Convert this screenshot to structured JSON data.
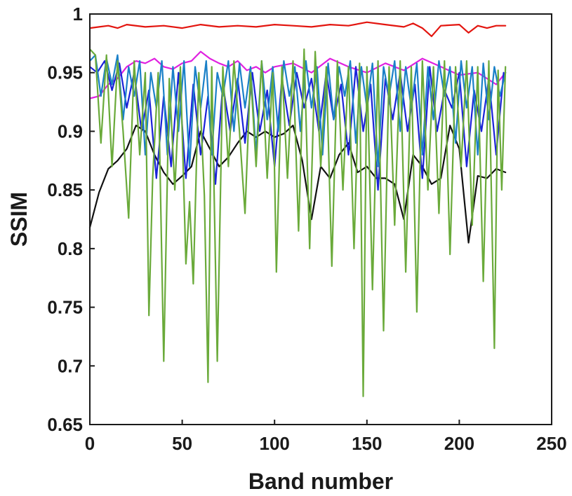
{
  "chart_data": {
    "type": "line",
    "title": "",
    "xlabel": "Band number",
    "ylabel": "SSIM",
    "xlim": [
      0,
      250
    ],
    "ylim": [
      0.65,
      1
    ],
    "xticks": [
      0,
      50,
      100,
      150,
      200,
      250
    ],
    "xtick_labels": [
      "0",
      "50",
      "100",
      "150",
      "200",
      "250"
    ],
    "yticks": [
      0.65,
      0.7,
      0.75,
      0.8,
      0.85,
      0.9,
      0.95,
      1
    ],
    "ytick_labels": [
      "0.65",
      "0.7",
      "0.75",
      "0.8",
      "0.85",
      "0.9",
      "0.95",
      "1"
    ],
    "grid": false,
    "legend": "none",
    "series": [
      {
        "color": "#e3150f",
        "x": [
          0,
          5,
          10,
          15,
          20,
          30,
          40,
          50,
          60,
          70,
          80,
          90,
          100,
          110,
          120,
          130,
          140,
          150,
          160,
          170,
          175,
          180,
          185,
          190,
          200,
          205,
          210,
          215,
          220,
          225
        ],
        "values": [
          0.988,
          0.989,
          0.99,
          0.988,
          0.991,
          0.989,
          0.99,
          0.988,
          0.991,
          0.989,
          0.99,
          0.989,
          0.991,
          0.99,
          0.989,
          0.991,
          0.99,
          0.993,
          0.991,
          0.989,
          0.992,
          0.988,
          0.981,
          0.99,
          0.991,
          0.984,
          0.99,
          0.988,
          0.99,
          0.99
        ]
      },
      {
        "color": "#e020e0",
        "x": [
          0,
          5,
          10,
          15,
          20,
          25,
          30,
          35,
          40,
          45,
          50,
          55,
          60,
          65,
          70,
          75,
          80,
          85,
          90,
          95,
          100,
          110,
          120,
          130,
          140,
          150,
          160,
          170,
          180,
          190,
          200,
          210,
          220,
          225
        ],
        "values": [
          0.928,
          0.93,
          0.94,
          0.945,
          0.955,
          0.96,
          0.958,
          0.962,
          0.955,
          0.953,
          0.958,
          0.96,
          0.968,
          0.962,
          0.958,
          0.955,
          0.96,
          0.952,
          0.955,
          0.95,
          0.955,
          0.958,
          0.95,
          0.962,
          0.955,
          0.95,
          0.958,
          0.952,
          0.962,
          0.955,
          0.948,
          0.95,
          0.94,
          0.95
        ]
      },
      {
        "color": "#111111",
        "x": [
          0,
          5,
          10,
          15,
          20,
          25,
          30,
          35,
          40,
          45,
          50,
          55,
          60,
          65,
          70,
          75,
          80,
          85,
          90,
          95,
          100,
          105,
          110,
          115,
          120,
          125,
          130,
          135,
          140,
          145,
          150,
          155,
          160,
          165,
          170,
          175,
          180,
          185,
          190,
          195,
          200,
          205,
          210,
          215,
          220,
          225
        ],
        "values": [
          0.818,
          0.848,
          0.868,
          0.875,
          0.885,
          0.905,
          0.9,
          0.88,
          0.865,
          0.855,
          0.862,
          0.87,
          0.9,
          0.885,
          0.87,
          0.878,
          0.89,
          0.9,
          0.895,
          0.9,
          0.895,
          0.898,
          0.905,
          0.875,
          0.825,
          0.87,
          0.86,
          0.88,
          0.89,
          0.865,
          0.87,
          0.86,
          0.86,
          0.855,
          0.825,
          0.88,
          0.87,
          0.855,
          0.86,
          0.905,
          0.885,
          0.805,
          0.862,
          0.86,
          0.868,
          0.865
        ]
      },
      {
        "color": "#1a22d8",
        "x": [
          0,
          4,
          8,
          12,
          16,
          20,
          24,
          28,
          32,
          36,
          40,
          44,
          48,
          52,
          56,
          60,
          64,
          68,
          72,
          76,
          80,
          84,
          88,
          92,
          96,
          100,
          104,
          108,
          112,
          116,
          120,
          124,
          128,
          132,
          136,
          140,
          144,
          148,
          152,
          156,
          160,
          164,
          168,
          172,
          176,
          180,
          184,
          188,
          192,
          196,
          200,
          204,
          208,
          212,
          216,
          220,
          224
        ],
        "values": [
          0.955,
          0.95,
          0.96,
          0.935,
          0.958,
          0.92,
          0.95,
          0.9,
          0.935,
          0.86,
          0.93,
          0.87,
          0.95,
          0.86,
          0.94,
          0.88,
          0.93,
          0.855,
          0.94,
          0.9,
          0.945,
          0.89,
          0.95,
          0.9,
          0.935,
          0.87,
          0.945,
          0.905,
          0.95,
          0.92,
          0.945,
          0.9,
          0.95,
          0.91,
          0.94,
          0.88,
          0.955,
          0.9,
          0.94,
          0.85,
          0.945,
          0.91,
          0.95,
          0.9,
          0.94,
          0.86,
          0.955,
          0.9,
          0.935,
          0.92,
          0.95,
          0.87,
          0.935,
          0.9,
          0.945,
          0.88,
          0.95
        ]
      },
      {
        "color": "#1a80c8",
        "x": [
          0,
          3,
          6,
          9,
          12,
          15,
          18,
          21,
          24,
          27,
          30,
          33,
          36,
          39,
          42,
          45,
          48,
          51,
          54,
          57,
          60,
          63,
          66,
          69,
          72,
          75,
          78,
          81,
          84,
          87,
          90,
          93,
          96,
          99,
          102,
          105,
          108,
          111,
          114,
          117,
          120,
          123,
          126,
          129,
          132,
          135,
          138,
          141,
          144,
          147,
          150,
          153,
          156,
          159,
          162,
          165,
          168,
          171,
          174,
          177,
          180,
          183,
          186,
          189,
          192,
          195,
          198,
          201,
          204,
          207,
          210,
          213,
          216,
          219,
          222,
          225
        ],
        "values": [
          0.96,
          0.965,
          0.93,
          0.962,
          0.94,
          0.965,
          0.91,
          0.955,
          0.93,
          0.96,
          0.88,
          0.95,
          0.92,
          0.96,
          0.88,
          0.955,
          0.9,
          0.96,
          0.87,
          0.955,
          0.92,
          0.96,
          0.88,
          0.95,
          0.93,
          0.96,
          0.9,
          0.958,
          0.92,
          0.955,
          0.88,
          0.96,
          0.91,
          0.955,
          0.9,
          0.96,
          0.93,
          0.955,
          0.9,
          0.96,
          0.92,
          0.955,
          0.88,
          0.958,
          0.91,
          0.955,
          0.93,
          0.96,
          0.89,
          0.955,
          0.92,
          0.958,
          0.87,
          0.955,
          0.93,
          0.96,
          0.9,
          0.955,
          0.92,
          0.958,
          0.88,
          0.955,
          0.91,
          0.96,
          0.93,
          0.955,
          0.89,
          0.96,
          0.92,
          0.955,
          0.88,
          0.958,
          0.91,
          0.955,
          0.93,
          0.95
        ]
      },
      {
        "color": "#6aaa3a",
        "x": [
          0,
          3,
          6,
          9,
          12,
          15,
          18,
          21,
          24,
          27,
          30,
          32,
          34,
          37,
          40,
          43,
          46,
          49,
          52,
          54,
          56,
          59,
          62,
          64,
          66,
          69,
          72,
          75,
          78,
          81,
          84,
          87,
          90,
          93,
          96,
          99,
          101,
          104,
          107,
          110,
          113,
          116,
          119,
          122,
          125,
          128,
          131,
          134,
          137,
          140,
          143,
          146,
          148,
          150,
          153,
          156,
          159,
          162,
          165,
          168,
          171,
          174,
          177,
          180,
          183,
          186,
          189,
          192,
          195,
          198,
          201,
          204,
          207,
          210,
          213,
          216,
          219,
          221,
          223,
          225
        ],
        "values": [
          0.97,
          0.965,
          0.89,
          0.965,
          0.87,
          0.96,
          0.9,
          0.826,
          0.96,
          0.88,
          0.95,
          0.743,
          0.86,
          0.95,
          0.704,
          0.945,
          0.85,
          0.955,
          0.787,
          0.84,
          0.77,
          0.95,
          0.845,
          0.686,
          0.955,
          0.704,
          0.955,
          0.87,
          0.96,
          0.9,
          0.83,
          0.95,
          0.87,
          0.96,
          0.86,
          0.95,
          0.78,
          0.955,
          0.86,
          0.96,
          0.815,
          0.97,
          0.8,
          0.968,
          0.87,
          0.955,
          0.785,
          0.96,
          0.85,
          0.955,
          0.8,
          0.958,
          0.674,
          0.955,
          0.765,
          0.96,
          0.73,
          0.955,
          0.82,
          0.96,
          0.78,
          0.955,
          0.746,
          0.96,
          0.85,
          0.955,
          0.83,
          0.96,
          0.795,
          0.955,
          0.87,
          0.96,
          0.82,
          0.955,
          0.772,
          0.96,
          0.715,
          0.952,
          0.85,
          0.955
        ]
      }
    ]
  }
}
